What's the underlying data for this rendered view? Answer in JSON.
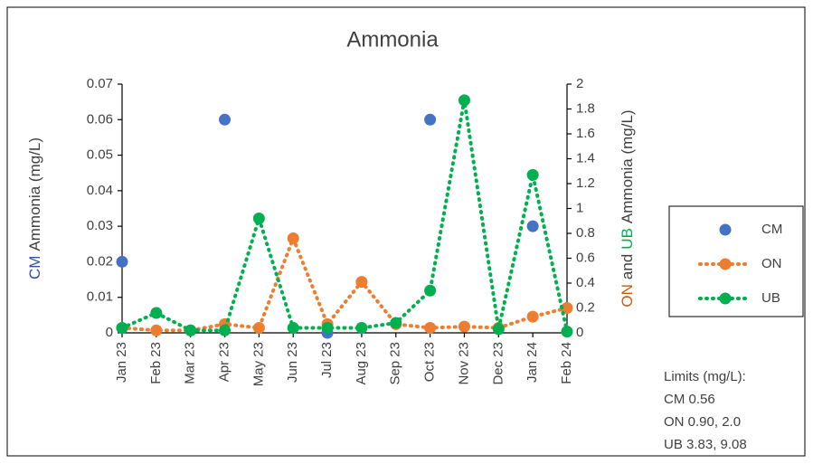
{
  "chart_data": {
    "type": "line",
    "title": "Ammonia",
    "categories": [
      "Jan 23",
      "Feb 23",
      "Mar 23",
      "Apr 23",
      "May 23",
      "Jun 23",
      "Jul 23",
      "Aug 23",
      "Sep 23",
      "Oct 23",
      "Nov 23",
      "Dec 23",
      "Jan 24",
      "Feb 24"
    ],
    "ylabel_parts": [
      {
        "text": "CM",
        "color": "#2F5597"
      },
      {
        "text": "Ammonia (mg/L)",
        "color": "#404040"
      }
    ],
    "y2label_parts": [
      {
        "text": "ON",
        "color": "#C55A11"
      },
      {
        "text": "and",
        "color": "#404040"
      },
      {
        "text": "UB",
        "color": "#00B050"
      },
      {
        "text": "Ammonia (mg/L)",
        "color": "#404040"
      }
    ],
    "ylim": [
      0,
      0.07
    ],
    "yticks": [
      0,
      0.01,
      0.02,
      0.03,
      0.04,
      0.05,
      0.06,
      0.07
    ],
    "y2lim": [
      0,
      2
    ],
    "y2ticks": [
      0,
      0.2,
      0.4,
      0.6,
      0.8,
      1,
      1.2,
      1.4,
      1.6,
      1.8,
      2
    ],
    "series": [
      {
        "name": "CM",
        "color": "#4472C4",
        "axis": "y",
        "line": false,
        "values": [
          0.02,
          null,
          null,
          0.06,
          null,
          null,
          0,
          null,
          null,
          0.06,
          null,
          null,
          0.03,
          null
        ]
      },
      {
        "name": "ON",
        "color": "#ED7D31",
        "axis": "y2",
        "line": true,
        "values": [
          0.04,
          0.02,
          0.02,
          0.07,
          0.04,
          0.76,
          0.07,
          0.41,
          0.07,
          0.04,
          0.05,
          0.04,
          0.13,
          0.2
        ]
      },
      {
        "name": "UB",
        "color": "#00B050",
        "axis": "y2",
        "line": true,
        "values": [
          0.04,
          0.16,
          0.02,
          0.02,
          0.92,
          0.04,
          0.04,
          0.04,
          0.08,
          0.34,
          1.87,
          0.03,
          1.27,
          0.01
        ]
      }
    ],
    "annotations": [
      "Limits (mg/L):",
      "CM 0.56",
      "ON 0.90, 2.0",
      "UB 3.83, 9.08"
    ],
    "grid": false
  }
}
